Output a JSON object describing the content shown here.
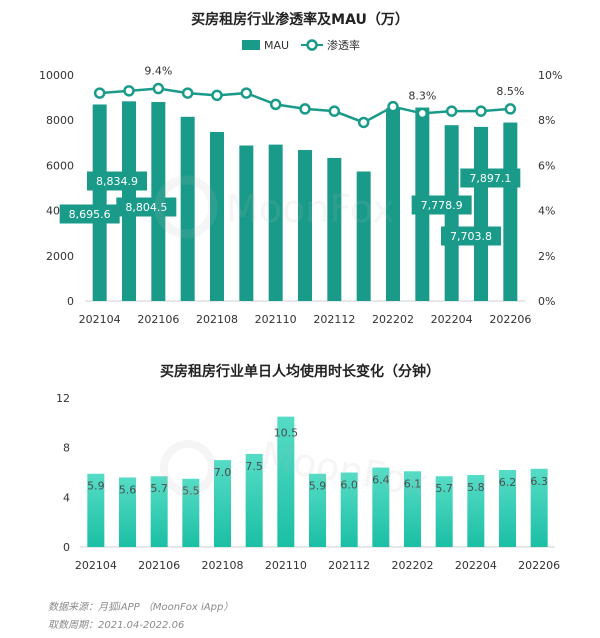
{
  "chart_data": [
    {
      "type": "bar",
      "title": "买房租房行业渗透率及MAU（万）",
      "categories": [
        "202104",
        "202105",
        "202106",
        "202107",
        "202108",
        "202109",
        "202110",
        "202111",
        "202112",
        "202201",
        "202202",
        "202203",
        "202204",
        "202205",
        "202206"
      ],
      "x_tick_labels": [
        "202104",
        "202106",
        "202108",
        "202110",
        "202112",
        "202202",
        "202204",
        "202206"
      ],
      "series": [
        {
          "name": "MAU",
          "type": "bar",
          "axis": "left",
          "color": "#1a9b8a",
          "values": [
            8695.6,
            8834.9,
            8804.5,
            8150,
            7480,
            6880,
            6920,
            6680,
            6330,
            5730,
            8530,
            8560,
            7778.9,
            7703.8,
            7897.1
          ]
        },
        {
          "name": "渗透率",
          "type": "line",
          "axis": "right",
          "color": "#1a9b8a",
          "values": [
            9.2,
            9.3,
            9.4,
            9.2,
            9.1,
            9.2,
            8.7,
            8.5,
            8.4,
            7.9,
            8.6,
            8.3,
            8.4,
            8.4,
            8.5
          ]
        }
      ],
      "ylim_left": [
        0,
        10000
      ],
      "yticks_left": [
        "0",
        "2000",
        "4000",
        "6000",
        "8000",
        "10000"
      ],
      "ylim_right": [
        0,
        10
      ],
      "yticks_right": [
        "0%",
        "2%",
        "4%",
        "6%",
        "8%",
        "10%"
      ],
      "bar_labels": [
        {
          "index": 0,
          "text": "8,695.6"
        },
        {
          "index": 1,
          "text": "8,834.9"
        },
        {
          "index": 2,
          "text": "8,804.5"
        },
        {
          "index": 12,
          "text": "7,778.9"
        },
        {
          "index": 13,
          "text": "7,703.8"
        },
        {
          "index": 14,
          "text": "7,897.1"
        }
      ],
      "line_labels": [
        {
          "index": 2,
          "text": "9.4%"
        },
        {
          "index": 11,
          "text": "8.3%"
        },
        {
          "index": 14,
          "text": "8.5%"
        }
      ],
      "legend": "top"
    },
    {
      "type": "bar",
      "title": "买房租房行业单日人均使用时长变化（分钟）",
      "categories": [
        "202104",
        "202105",
        "202106",
        "202107",
        "202108",
        "202109",
        "202110",
        "202111",
        "202112",
        "202201",
        "202202",
        "202203",
        "202204",
        "202205",
        "202206"
      ],
      "x_tick_labels": [
        "202104",
        "202106",
        "202108",
        "202110",
        "202112",
        "202202",
        "202204",
        "202206"
      ],
      "values": [
        5.9,
        5.6,
        5.7,
        5.5,
        7.0,
        7.5,
        10.5,
        5.9,
        6.0,
        6.4,
        6.1,
        5.7,
        5.8,
        6.2,
        6.3
      ],
      "value_labels": [
        "5.9",
        "5.6",
        "5.7",
        "5.5",
        "7.0",
        "7.5",
        "10.5",
        "5.9",
        "6.0",
        "6.4",
        "6.1",
        "5.7",
        "5.8",
        "6.2",
        "6.3"
      ],
      "ylim": [
        0,
        12
      ],
      "yticks": [
        "0",
        "4",
        "8",
        "12"
      ],
      "bar_color_top": "#56dcc6",
      "bar_color_bottom": "#1bbfa4"
    }
  ],
  "watermark": "MoonFox",
  "footer": {
    "source": "数据来源：月狐iAPP （MoonFox iApp）",
    "period": "取数周期：2021.04-2022.06"
  }
}
